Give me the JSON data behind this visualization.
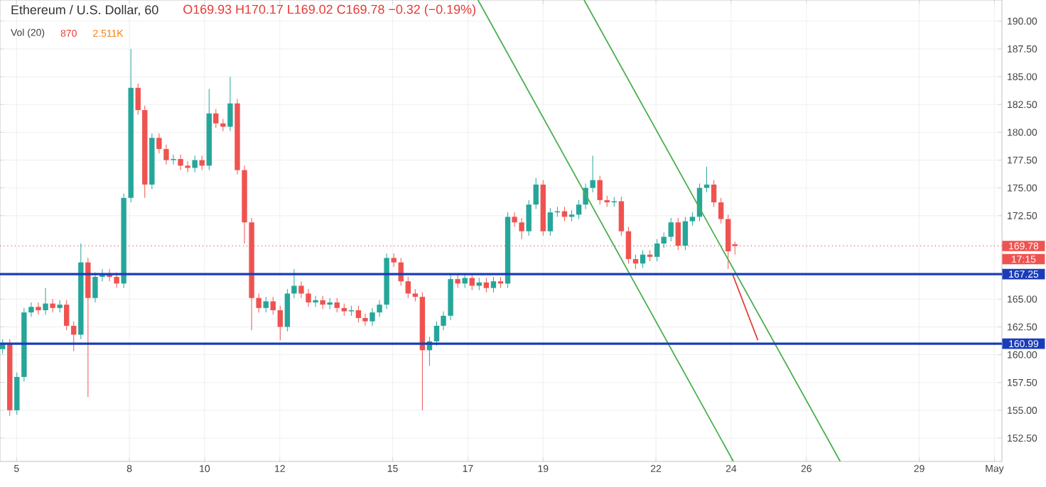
{
  "chart_data": {
    "type": "candlestick",
    "title": "Ethereum / U.S. Dollar, 60",
    "subtitle": "O169.93 H170.17 L169.02 C169.78 −0.32 (−0.19%)",
    "annotations": [
      "Vol (20)",
      "870",
      "2.511K",
      "17:15"
    ],
    "x": [
      4.63,
      4.82,
      5.01,
      5.2,
      5.39,
      5.58,
      5.77,
      5.96,
      6.15,
      6.33,
      6.52,
      6.71,
      6.9,
      7.09,
      7.28,
      7.47,
      7.66,
      7.85,
      8.04,
      8.23,
      8.41,
      8.6,
      8.79,
      8.98,
      9.17,
      9.36,
      9.55,
      9.74,
      9.93,
      10.12,
      10.3,
      10.49,
      10.68,
      10.87,
      11.06,
      11.25,
      11.44,
      11.63,
      11.82,
      12.01,
      12.2,
      12.38,
      12.57,
      12.76,
      12.95,
      13.14,
      13.33,
      13.52,
      13.71,
      13.9,
      14.09,
      14.27,
      14.46,
      14.65,
      14.84,
      15.03,
      15.22,
      15.41,
      15.6,
      15.79,
      15.98,
      16.17,
      16.35,
      16.54,
      16.73,
      16.92,
      17.11,
      17.3,
      17.49,
      17.68,
      17.87,
      18.06,
      18.24,
      18.43,
      18.62,
      18.81,
      19.0,
      19.19,
      19.38,
      19.57,
      19.76,
      19.95,
      20.13,
      20.32,
      20.51,
      20.7,
      20.89,
      21.08,
      21.27,
      21.46,
      21.65,
      21.84,
      22.03,
      22.21,
      22.4,
      22.59,
      22.78,
      22.97,
      23.16,
      23.35,
      23.54,
      23.73,
      23.92,
      24.1
    ],
    "ohlc": [
      [
        160.5,
        161.4,
        160.1,
        161.0
      ],
      [
        161.0,
        161.4,
        154.5,
        155.0
      ],
      [
        155.0,
        158.4,
        154.6,
        158.0
      ],
      [
        158.0,
        164.2,
        157.6,
        163.8
      ],
      [
        163.8,
        164.7,
        163.4,
        164.3
      ],
      [
        164.3,
        164.7,
        163.6,
        164.0
      ],
      [
        164.0,
        166.0,
        163.6,
        164.6
      ],
      [
        164.6,
        165.0,
        163.8,
        164.2
      ],
      [
        164.2,
        164.9,
        163.8,
        164.5
      ],
      [
        164.5,
        164.9,
        162.2,
        162.6
      ],
      [
        162.6,
        163.0,
        160.3,
        161.8
      ],
      [
        161.8,
        170.0,
        161.4,
        168.3
      ],
      [
        168.3,
        168.7,
        156.2,
        165.1
      ],
      [
        165.1,
        167.4,
        164.7,
        167.0
      ],
      [
        167.0,
        167.7,
        166.6,
        167.3
      ],
      [
        167.3,
        167.7,
        166.6,
        167.0
      ],
      [
        167.0,
        167.4,
        166.0,
        166.4
      ],
      [
        166.4,
        174.5,
        166.0,
        174.1
      ],
      [
        174.1,
        187.5,
        173.7,
        184.0
      ],
      [
        184.0,
        184.4,
        181.6,
        182.0
      ],
      [
        182.0,
        182.4,
        174.1,
        175.3
      ],
      [
        175.3,
        179.9,
        174.9,
        179.5
      ],
      [
        179.5,
        179.9,
        178.1,
        178.5
      ],
      [
        178.5,
        178.9,
        177.1,
        177.5
      ],
      [
        177.5,
        178.0,
        177.1,
        177.6
      ],
      [
        177.6,
        178.0,
        176.6,
        177.0
      ],
      [
        177.0,
        177.4,
        176.4,
        176.8
      ],
      [
        176.8,
        177.9,
        176.4,
        177.5
      ],
      [
        177.5,
        177.9,
        176.6,
        177.0
      ],
      [
        177.0,
        183.9,
        176.6,
        181.7
      ],
      [
        181.7,
        182.1,
        180.4,
        180.8
      ],
      [
        180.8,
        181.2,
        180.1,
        180.5
      ],
      [
        180.5,
        185.0,
        180.1,
        182.6
      ],
      [
        182.6,
        183.0,
        176.2,
        176.6
      ],
      [
        176.6,
        177.0,
        170.0,
        171.9
      ],
      [
        171.9,
        172.3,
        162.2,
        165.1
      ],
      [
        165.1,
        165.5,
        163.8,
        164.2
      ],
      [
        164.2,
        165.2,
        163.8,
        164.8
      ],
      [
        164.8,
        165.2,
        163.6,
        164.0
      ],
      [
        164.0,
        164.4,
        161.3,
        162.5
      ],
      [
        162.5,
        165.9,
        162.1,
        165.5
      ],
      [
        165.5,
        167.7,
        165.1,
        166.2
      ],
      [
        166.2,
        166.6,
        165.1,
        165.5
      ],
      [
        165.5,
        165.9,
        164.3,
        164.7
      ],
      [
        164.7,
        165.3,
        164.3,
        164.9
      ],
      [
        164.9,
        165.3,
        164.1,
        164.5
      ],
      [
        164.5,
        165.1,
        164.1,
        164.7
      ],
      [
        164.7,
        165.1,
        163.8,
        164.2
      ],
      [
        164.2,
        164.6,
        163.5,
        163.9
      ],
      [
        163.9,
        164.4,
        163.5,
        164.0
      ],
      [
        164.0,
        164.4,
        162.9,
        163.3
      ],
      [
        163.3,
        163.7,
        162.6,
        163.0
      ],
      [
        163.0,
        164.2,
        162.6,
        163.8
      ],
      [
        163.8,
        164.9,
        163.4,
        164.5
      ],
      [
        164.5,
        169.1,
        164.1,
        168.7
      ],
      [
        168.7,
        169.1,
        167.9,
        168.3
      ],
      [
        168.3,
        168.7,
        166.2,
        166.6
      ],
      [
        166.6,
        167.0,
        165.1,
        165.5
      ],
      [
        165.5,
        165.9,
        164.8,
        165.2
      ],
      [
        165.2,
        165.6,
        155.0,
        160.4
      ],
      [
        160.4,
        161.6,
        159.0,
        161.2
      ],
      [
        161.2,
        163.0,
        160.8,
        162.6
      ],
      [
        162.6,
        163.9,
        162.2,
        163.5
      ],
      [
        163.5,
        167.2,
        163.1,
        166.8
      ],
      [
        166.8,
        167.2,
        166.0,
        166.4
      ],
      [
        166.4,
        167.3,
        166.0,
        166.9
      ],
      [
        166.9,
        167.3,
        165.8,
        166.2
      ],
      [
        166.2,
        166.9,
        165.8,
        166.5
      ],
      [
        166.5,
        166.9,
        165.6,
        166.0
      ],
      [
        166.0,
        167.0,
        165.6,
        166.6
      ],
      [
        166.6,
        167.0,
        166.0,
        166.4
      ],
      [
        166.4,
        172.8,
        166.0,
        172.4
      ],
      [
        172.4,
        172.8,
        171.5,
        171.9
      ],
      [
        171.9,
        172.3,
        170.4,
        171.1
      ],
      [
        171.1,
        173.9,
        170.7,
        173.5
      ],
      [
        173.5,
        175.9,
        173.1,
        175.3
      ],
      [
        175.3,
        175.7,
        170.7,
        171.1
      ],
      [
        171.1,
        173.2,
        170.7,
        172.8
      ],
      [
        172.8,
        173.3,
        172.4,
        172.9
      ],
      [
        172.9,
        173.3,
        172.0,
        172.4
      ],
      [
        172.4,
        173.0,
        172.0,
        172.6
      ],
      [
        172.6,
        173.9,
        172.2,
        173.5
      ],
      [
        173.5,
        175.4,
        173.1,
        175.0
      ],
      [
        175.0,
        177.9,
        174.6,
        175.7
      ],
      [
        175.7,
        176.1,
        173.5,
        173.9
      ],
      [
        173.9,
        174.3,
        173.3,
        173.7
      ],
      [
        173.7,
        174.2,
        173.3,
        173.8
      ],
      [
        173.8,
        174.2,
        170.7,
        171.1
      ],
      [
        171.1,
        171.5,
        168.2,
        168.6
      ],
      [
        168.6,
        169.0,
        167.7,
        168.2
      ],
      [
        168.2,
        169.4,
        167.8,
        169.0
      ],
      [
        169.0,
        169.4,
        168.4,
        168.8
      ],
      [
        168.8,
        170.4,
        168.4,
        170.0
      ],
      [
        170.0,
        171.0,
        169.6,
        170.6
      ],
      [
        170.6,
        172.3,
        170.2,
        171.9
      ],
      [
        171.9,
        172.3,
        169.4,
        169.8
      ],
      [
        169.8,
        172.4,
        169.4,
        172.0
      ],
      [
        172.0,
        172.8,
        171.6,
        172.4
      ],
      [
        172.4,
        175.4,
        172.0,
        175.0
      ],
      [
        175.0,
        176.9,
        174.6,
        175.3
      ],
      [
        175.3,
        175.7,
        173.3,
        173.7
      ],
      [
        173.7,
        174.1,
        171.8,
        172.2
      ],
      [
        172.2,
        172.6,
        167.7,
        169.3
      ],
      [
        169.93,
        170.17,
        169.02,
        169.78
      ]
    ],
    "series": [
      {
        "type": "line",
        "color": "#4caf50",
        "x": [
          20.09,
          26.9
        ],
        "values": [
          191.9,
          150.4
        ]
      },
      {
        "type": "line",
        "color": "#4caf50",
        "x": [
          17.27,
          24.06
        ],
        "values": [
          191.9,
          150.4
        ]
      },
      {
        "type": "line",
        "color": "#e53935",
        "x": [
          24.03,
          24.71
        ],
        "values": [
          167.3,
          161.3
        ]
      }
    ],
    "ref_lines": [
      {
        "axis": "y",
        "value": 169.78,
        "label": "169.78",
        "color": "#ef5350",
        "line_style": "dotted"
      },
      {
        "axis": "y",
        "value": 167.25,
        "label": "167.25",
        "color": "#1a3cb8",
        "line_style": "solid"
      },
      {
        "axis": "y",
        "value": 160.99,
        "label": "160.99",
        "color": "#1a3cb8",
        "line_style": "solid"
      }
    ],
    "xlim": [
      4.56,
      31.2
    ],
    "ylim": [
      150.4,
      191.9
    ],
    "xticks": [
      5,
      8,
      10,
      12,
      15,
      17,
      19,
      22,
      24,
      26,
      29,
      {
        "value": 31,
        "label": "May"
      }
    ],
    "yticks": [
      {
        "value": 152.5,
        "label": "152.50"
      },
      {
        "value": 155,
        "label": "155.00"
      },
      {
        "value": 157.5,
        "label": "157.50"
      },
      {
        "value": 160,
        "label": "160.00"
      },
      {
        "value": 162.5,
        "label": "162.50"
      },
      {
        "value": 165,
        "label": "165.00"
      },
      {
        "value": 172.5,
        "label": "172.50"
      },
      {
        "value": 175,
        "label": "175.00"
      },
      {
        "value": 177.5,
        "label": "177.50"
      },
      {
        "value": 180,
        "label": "180.00"
      },
      {
        "value": 182.5,
        "label": "182.50"
      },
      {
        "value": 185,
        "label": "185.00"
      },
      {
        "value": 187.5,
        "label": "187.50"
      },
      {
        "value": 190,
        "label": "190.00"
      }
    ],
    "grid": true
  }
}
